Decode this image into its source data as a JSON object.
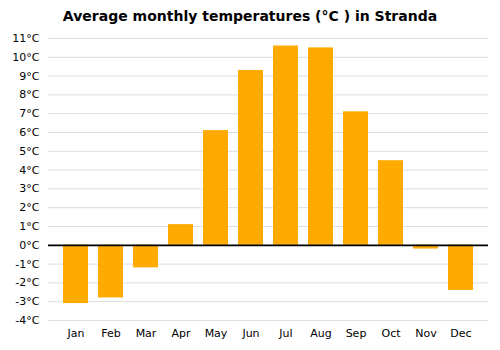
{
  "chart_data": {
    "type": "bar",
    "title": "Average monthly temperatures (°C ) in Stranda",
    "categories": [
      "Jan",
      "Feb",
      "Mar",
      "Apr",
      "May",
      "Jun",
      "Jul",
      "Aug",
      "Sep",
      "Oct",
      "Nov",
      "Dec"
    ],
    "values": [
      -3.1,
      -2.8,
      -1.2,
      1.1,
      6.1,
      9.3,
      10.6,
      10.5,
      7.1,
      4.5,
      -0.2,
      -2.4
    ],
    "color": "#FFAA00",
    "ylim": [
      -4,
      11
    ],
    "yticks": [
      {
        "value": -4,
        "label": "-4°C"
      },
      {
        "value": -3,
        "label": "-3°C"
      },
      {
        "value": -2,
        "label": "-2°C"
      },
      {
        "value": -1,
        "label": "-1°C"
      },
      {
        "value": 0,
        "label": "0°C"
      },
      {
        "value": 1,
        "label": "1°C"
      },
      {
        "value": 2,
        "label": "2°C"
      },
      {
        "value": 3,
        "label": "3°C"
      },
      {
        "value": 4,
        "label": "4°C"
      },
      {
        "value": 5,
        "label": "5°C"
      },
      {
        "value": 6,
        "label": "6°C"
      },
      {
        "value": 7,
        "label": "7°C"
      },
      {
        "value": 8,
        "label": "8°C"
      },
      {
        "value": 9,
        "label": "9°C"
      },
      {
        "value": 10,
        "label": "10°C"
      },
      {
        "value": 11,
        "label": "11°C"
      }
    ],
    "grid": true
  }
}
